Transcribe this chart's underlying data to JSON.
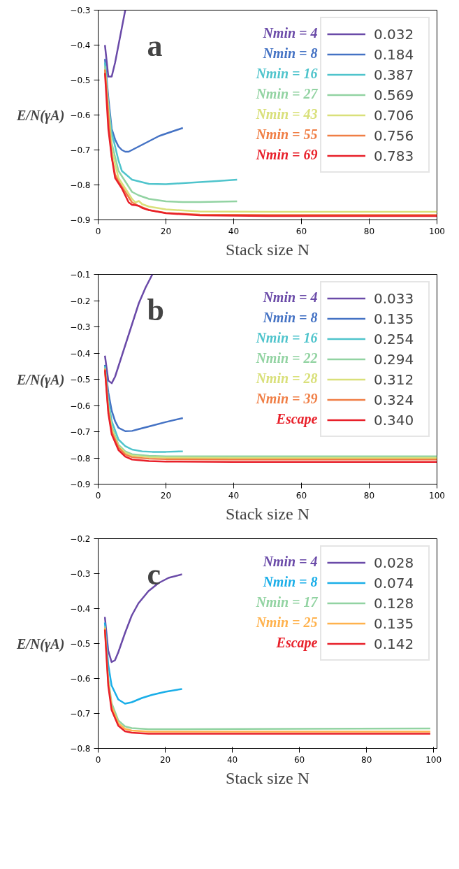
{
  "chart_data": [
    {
      "type": "line",
      "xlabel": "Stack size N",
      "ylabel": "E/N(γA)",
      "xlim": [
        0,
        100
      ],
      "ylim": [
        -0.9,
        -0.3
      ],
      "xticks": [
        0,
        20,
        40,
        60,
        80,
        100
      ],
      "yticks": [
        -0.9,
        -0.8,
        -0.7,
        -0.6,
        -0.5,
        -0.4,
        -0.3
      ],
      "legend": "top right",
      "annotations": [
        "a",
        "Nmin = 4",
        "Nmin = 8",
        "Nmin = 16",
        "Nmin = 27",
        "Nmin = 43",
        "Nmin = 55",
        "Nmin = 69"
      ],
      "series": [
        {
          "name": "0.032",
          "color": "#6a4aa8",
          "x": [
            2,
            3,
            4,
            5,
            6,
            7,
            8
          ],
          "values": [
            -0.4,
            -0.49,
            -0.49,
            -0.45,
            -0.4,
            -0.35,
            -0.3
          ]
        },
        {
          "name": "0.184",
          "color": "#4472c4",
          "x": [
            2,
            3,
            4,
            5,
            6,
            7,
            8,
            9,
            10,
            12,
            15,
            18,
            21,
            25
          ],
          "values": [
            -0.44,
            -0.55,
            -0.64,
            -0.67,
            -0.69,
            -0.7,
            -0.705,
            -0.705,
            -0.7,
            -0.69,
            -0.675,
            -0.66,
            -0.65,
            -0.637
          ]
        },
        {
          "name": "0.387",
          "color": "#4fc4cc",
          "x": [
            2,
            3,
            4,
            6,
            7,
            10,
            15,
            20,
            25,
            30,
            35,
            41
          ],
          "values": [
            -0.45,
            -0.57,
            -0.65,
            -0.73,
            -0.76,
            -0.785,
            -0.797,
            -0.798,
            -0.795,
            -0.792,
            -0.789,
            -0.785
          ]
        },
        {
          "name": "0.569",
          "color": "#92d3a2",
          "x": [
            2,
            4,
            6,
            8,
            10,
            12,
            15,
            20,
            25,
            30,
            41
          ],
          "values": [
            -0.46,
            -0.68,
            -0.76,
            -0.79,
            -0.82,
            -0.83,
            -0.84,
            -0.847,
            -0.849,
            -0.849,
            -0.847
          ]
        },
        {
          "name": "0.706",
          "color": "#d9e07a",
          "x": [
            2,
            4,
            6,
            8,
            10,
            11,
            12,
            13,
            15,
            20,
            30,
            50,
            100
          ],
          "values": [
            -0.47,
            -0.7,
            -0.78,
            -0.81,
            -0.84,
            -0.85,
            -0.846,
            -0.855,
            -0.862,
            -0.87,
            -0.876,
            -0.877,
            -0.877
          ]
        },
        {
          "name": "0.756",
          "color": "#f07e45",
          "x": [
            2,
            3,
            4,
            5,
            6,
            8,
            10,
            12,
            15,
            20,
            30,
            50,
            100
          ],
          "values": [
            -0.47,
            -0.6,
            -0.72,
            -0.77,
            -0.79,
            -0.82,
            -0.85,
            -0.86,
            -0.872,
            -0.88,
            -0.885,
            -0.886,
            -0.886
          ]
        },
        {
          "name": "0.783",
          "color": "#e8202a",
          "x": [
            2,
            3,
            4,
            5,
            6,
            7,
            8,
            9,
            10,
            11,
            12,
            13,
            15,
            20,
            30,
            50,
            100
          ],
          "values": [
            -0.48,
            -0.64,
            -0.72,
            -0.78,
            -0.795,
            -0.81,
            -0.83,
            -0.85,
            -0.857,
            -0.858,
            -0.86,
            -0.866,
            -0.872,
            -0.881,
            -0.887,
            -0.889,
            -0.889
          ]
        }
      ]
    },
    {
      "type": "line",
      "xlabel": "Stack size N",
      "ylabel": "E/N(γA)",
      "xlim": [
        0,
        100
      ],
      "ylim": [
        -0.9,
        -0.1
      ],
      "xticks": [
        0,
        20,
        40,
        60,
        80,
        100
      ],
      "yticks": [
        -0.9,
        -0.8,
        -0.7,
        -0.6,
        -0.5,
        -0.4,
        -0.3,
        -0.2,
        -0.1
      ],
      "legend": "top right",
      "annotations": [
        "b",
        "Nmin = 4",
        "Nmin = 8",
        "Nmin = 16",
        "Nmin = 22",
        "Nmin = 28",
        "Nmin = 39",
        "Escape"
      ],
      "series": [
        {
          "name": "0.033",
          "color": "#6a4aa8",
          "x": [
            2,
            3,
            4,
            5,
            6,
            8,
            10,
            12,
            14,
            16
          ],
          "values": [
            -0.41,
            -0.505,
            -0.515,
            -0.49,
            -0.45,
            -0.37,
            -0.29,
            -0.21,
            -0.15,
            -0.1
          ]
        },
        {
          "name": "0.135",
          "color": "#4472c4",
          "x": [
            2,
            3,
            4,
            5,
            6,
            8,
            10,
            12,
            15,
            20,
            25
          ],
          "values": [
            -0.445,
            -0.55,
            -0.62,
            -0.66,
            -0.685,
            -0.698,
            -0.697,
            -0.69,
            -0.68,
            -0.663,
            -0.648
          ]
        },
        {
          "name": "0.254",
          "color": "#4fc4cc",
          "x": [
            2,
            3,
            4,
            6,
            8,
            10,
            13,
            16,
            20,
            25
          ],
          "values": [
            -0.45,
            -0.58,
            -0.66,
            -0.73,
            -0.755,
            -0.768,
            -0.775,
            -0.777,
            -0.777,
            -0.775
          ]
        },
        {
          "name": "0.294",
          "color": "#92d3a2",
          "x": [
            2,
            3,
            4,
            6,
            8,
            10,
            15,
            20,
            40,
            100
          ],
          "values": [
            -0.455,
            -0.6,
            -0.68,
            -0.75,
            -0.775,
            -0.786,
            -0.792,
            -0.794,
            -0.794,
            -0.794
          ]
        },
        {
          "name": "0.312",
          "color": "#d9e07a",
          "x": [
            2,
            3,
            4,
            6,
            8,
            10,
            15,
            20,
            40,
            100
          ],
          "values": [
            -0.46,
            -0.61,
            -0.69,
            -0.755,
            -0.78,
            -0.791,
            -0.797,
            -0.799,
            -0.8,
            -0.8
          ]
        },
        {
          "name": "0.324",
          "color": "#f07e45",
          "x": [
            2,
            3,
            4,
            6,
            8,
            10,
            15,
            20,
            40,
            100
          ],
          "values": [
            -0.46,
            -0.62,
            -0.7,
            -0.76,
            -0.787,
            -0.797,
            -0.803,
            -0.805,
            -0.806,
            -0.806
          ]
        },
        {
          "name": "0.340",
          "color": "#e8202a",
          "x": [
            2,
            3,
            4,
            6,
            8,
            10,
            15,
            20,
            40,
            100
          ],
          "values": [
            -0.465,
            -0.63,
            -0.71,
            -0.77,
            -0.795,
            -0.806,
            -0.812,
            -0.814,
            -0.815,
            -0.815
          ]
        }
      ]
    },
    {
      "type": "line",
      "xlabel": "Stack size N",
      "ylabel": "E/N(γA)",
      "xlim": [
        0,
        101
      ],
      "ylim": [
        -0.8,
        -0.2
      ],
      "xticks": [
        0,
        20,
        40,
        60,
        80,
        100
      ],
      "yticks": [
        -0.8,
        -0.7,
        -0.6,
        -0.5,
        -0.4,
        -0.3,
        -0.2
      ],
      "legend": "top right",
      "annotations": [
        "c",
        "Nmin = 4",
        "Nmin = 8",
        "Nmin = 17",
        "Nmin = 25",
        "Escape"
      ],
      "series": [
        {
          "name": "0.028",
          "color": "#6a4aa8",
          "x": [
            2,
            3,
            4,
            5,
            6,
            8,
            10,
            12,
            15,
            18,
            21,
            25
          ],
          "values": [
            -0.424,
            -0.52,
            -0.553,
            -0.548,
            -0.525,
            -0.47,
            -0.42,
            -0.385,
            -0.35,
            -0.327,
            -0.312,
            -0.302
          ]
        },
        {
          "name": "0.074",
          "color": "#1aaee8",
          "x": [
            2,
            3,
            4,
            6,
            8,
            10,
            13,
            16,
            20,
            25
          ],
          "values": [
            -0.44,
            -0.56,
            -0.62,
            -0.66,
            -0.672,
            -0.668,
            -0.656,
            -0.647,
            -0.638,
            -0.63
          ]
        },
        {
          "name": "0.128",
          "color": "#92d3a2",
          "x": [
            2,
            3,
            4,
            6,
            8,
            10,
            15,
            20,
            99
          ],
          "values": [
            -0.45,
            -0.6,
            -0.67,
            -0.72,
            -0.737,
            -0.742,
            -0.745,
            -0.745,
            -0.743
          ]
        },
        {
          "name": "0.135",
          "color": "#ffb24d",
          "x": [
            2,
            3,
            4,
            6,
            8,
            10,
            15,
            20,
            99
          ],
          "values": [
            -0.455,
            -0.61,
            -0.68,
            -0.728,
            -0.744,
            -0.749,
            -0.752,
            -0.752,
            -0.752
          ]
        },
        {
          "name": "0.142",
          "color": "#e8202a",
          "x": [
            2,
            3,
            4,
            6,
            8,
            10,
            15,
            20,
            99
          ],
          "values": [
            -0.46,
            -0.62,
            -0.69,
            -0.735,
            -0.751,
            -0.755,
            -0.758,
            -0.758,
            -0.758
          ]
        }
      ]
    }
  ]
}
